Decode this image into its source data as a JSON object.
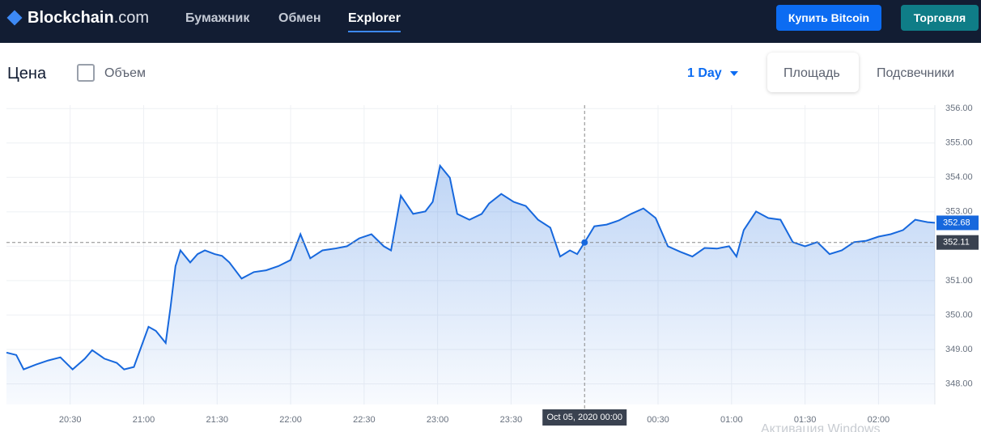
{
  "header": {
    "logo_name": "Blockchain",
    "logo_suffix": ".com",
    "nav": [
      "Бумажник",
      "Обмен",
      "Explorer"
    ],
    "buy_button": "Купить Bitcoin",
    "trade_button": "Торговля"
  },
  "toolbar": {
    "title": "Цена",
    "volume": "Объем",
    "range": "1 Day",
    "area": "Площадь",
    "candles": "Подсвечники"
  },
  "watermark": "Активация Windows",
  "chart_data": {
    "type": "line",
    "color": "#1768dd",
    "grid": true,
    "x": [
      1204,
      1208,
      1211,
      1216,
      1221,
      1226,
      1231,
      1236,
      1239,
      1244,
      1249,
      1252,
      1256,
      1259,
      1262,
      1265,
      1269,
      1271,
      1273,
      1275,
      1279,
      1282,
      1285,
      1289,
      1292,
      1295,
      1300,
      1305,
      1310,
      1315,
      1320,
      1324,
      1328,
      1333,
      1338,
      1343,
      1348,
      1353,
      1358,
      1361,
      1365,
      1370,
      1375,
      1378,
      1381,
      1385,
      1388,
      1393,
      1398,
      1401,
      1406,
      1411,
      1416,
      1421,
      1426,
      1430,
      1434,
      1437,
      1440,
      1444,
      1449,
      1454,
      1459,
      1464,
      1469,
      1474,
      1479,
      1484,
      1489,
      1494,
      1499,
      1502,
      1505,
      1510,
      1515,
      1520,
      1525,
      1530,
      1535,
      1540,
      1545,
      1550,
      1555,
      1560,
      1565,
      1570,
      1575,
      1580,
      1583
    ],
    "values": [
      348.91,
      348.84,
      348.42,
      348.56,
      348.68,
      348.77,
      348.42,
      348.73,
      348.98,
      348.73,
      348.61,
      348.42,
      348.49,
      349.08,
      349.66,
      349.54,
      349.19,
      350.25,
      351.42,
      351.88,
      351.53,
      351.77,
      351.88,
      351.77,
      351.72,
      351.53,
      351.06,
      351.25,
      351.3,
      351.42,
      351.6,
      352.35,
      351.65,
      351.88,
      351.93,
      352.0,
      352.23,
      352.35,
      352.0,
      351.88,
      353.47,
      352.94,
      353.01,
      353.29,
      354.34,
      353.99,
      352.94,
      352.77,
      352.94,
      353.24,
      353.52,
      353.29,
      353.17,
      352.77,
      352.54,
      351.7,
      351.88,
      351.77,
      352.11,
      352.58,
      352.63,
      352.75,
      352.94,
      353.1,
      352.82,
      352.0,
      351.84,
      351.7,
      351.95,
      351.93,
      352.0,
      351.7,
      352.47,
      353.01,
      352.82,
      352.77,
      352.12,
      352.0,
      352.12,
      351.77,
      351.88,
      352.12,
      352.16,
      352.28,
      352.35,
      352.47,
      352.77,
      352.7,
      352.68
    ],
    "xlim": [
      1204,
      1583
    ],
    "ylim": [
      347.4,
      356.1
    ],
    "xticks": [
      {
        "value": 1230,
        "label": "20:30"
      },
      {
        "value": 1260,
        "label": "21:00"
      },
      {
        "value": 1290,
        "label": "21:30"
      },
      {
        "value": 1320,
        "label": "22:00"
      },
      {
        "value": 1350,
        "label": "22:30"
      },
      {
        "value": 1380,
        "label": "23:00"
      },
      {
        "value": 1410,
        "label": "23:30"
      },
      {
        "value": 1470,
        "label": "00:30"
      },
      {
        "value": 1500,
        "label": "01:00"
      },
      {
        "value": 1530,
        "label": "01:30"
      },
      {
        "value": 1560,
        "label": "02:00"
      }
    ],
    "yticks": [
      {
        "value": 348,
        "label": "348.00"
      },
      {
        "value": 349,
        "label": "349.00"
      },
      {
        "value": 350,
        "label": "350.00"
      },
      {
        "value": 351,
        "label": "351.00"
      },
      {
        "value": 352,
        "label": "352.00"
      },
      {
        "value": 353,
        "label": "353.00"
      },
      {
        "value": 354,
        "label": "354.00"
      },
      {
        "value": 355,
        "label": "355.00"
      },
      {
        "value": 356,
        "label": "356.00"
      }
    ],
    "last_price": 352.68,
    "crosshair": {
      "x": 1440,
      "label": "Oct 05, 2020 00:00",
      "value": 352.11
    }
  }
}
